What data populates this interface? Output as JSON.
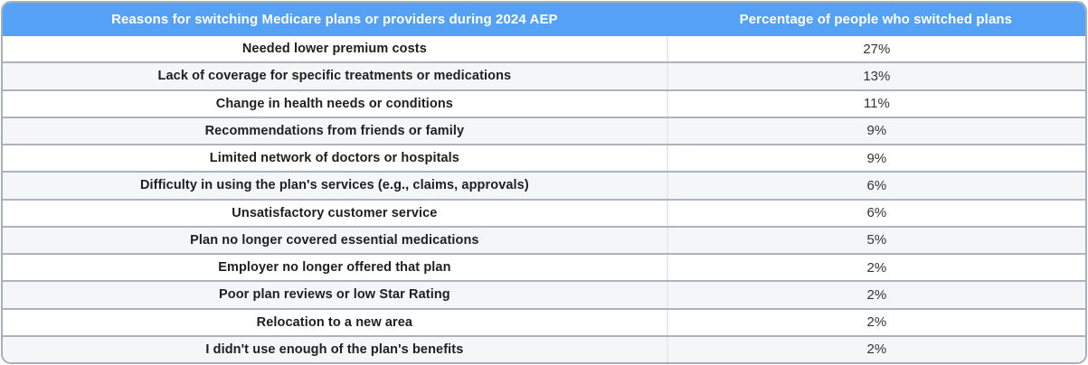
{
  "table": {
    "header": {
      "reason": "Reasons for switching Medicare plans or providers during 2024 AEP",
      "percentage": "Percentage of people who switched plans"
    },
    "rows": [
      {
        "reason": "Needed lower premium costs",
        "percentage": "27%"
      },
      {
        "reason": "Lack of coverage for specific treatments or medications",
        "percentage": "13%"
      },
      {
        "reason": "Change in health needs or conditions",
        "percentage": "11%"
      },
      {
        "reason": "Recommendations from friends or family",
        "percentage": "9%"
      },
      {
        "reason": "Limited network of doctors or hospitals",
        "percentage": "9%"
      },
      {
        "reason": "Difficulty in using the plan's services (e.g., claims, approvals)",
        "percentage": "6%"
      },
      {
        "reason": "Unsatisfactory customer service",
        "percentage": "6%"
      },
      {
        "reason": "Plan no longer covered essential medications",
        "percentage": "5%"
      },
      {
        "reason": "Employer no longer offered that plan",
        "percentage": "2%"
      },
      {
        "reason": "Poor plan reviews or low Star Rating",
        "percentage": "2%"
      },
      {
        "reason": "Relocation to a new area",
        "percentage": "2%"
      },
      {
        "reason": "I didn't use enough of the plan's benefits",
        "percentage": "2%"
      }
    ]
  },
  "colors": {
    "header_background": "#54A1F5",
    "header_text": "#FFFFFF",
    "row_alt_background": "#F5F6F7",
    "row_border": "#AEB4BE",
    "column_divider": "#E9EAEE",
    "outer_border": "#A9AFB9",
    "reason_text": "#1E1E1E",
    "percentage_text": "#333333"
  },
  "chart_data": {
    "type": "table",
    "title": "Reasons for switching Medicare plans or providers during 2024 AEP",
    "columns": [
      "Reasons for switching Medicare plans or providers during 2024 AEP",
      "Percentage of people who switched plans"
    ],
    "categories": [
      "Needed lower premium costs",
      "Lack of coverage for specific treatments or medications",
      "Change in health needs or conditions",
      "Recommendations from friends or family",
      "Limited network of doctors or hospitals",
      "Difficulty in using the plan's services (e.g., claims, approvals)",
      "Unsatisfactory customer service",
      "Plan no longer covered essential medications",
      "Employer no longer offered that plan",
      "Poor plan reviews or low Star Rating",
      "Relocation to a new area",
      "I didn't use enough of the plan's benefits"
    ],
    "values": [
      27,
      13,
      11,
      9,
      9,
      6,
      6,
      5,
      2,
      2,
      2,
      2
    ],
    "unit": "%"
  }
}
